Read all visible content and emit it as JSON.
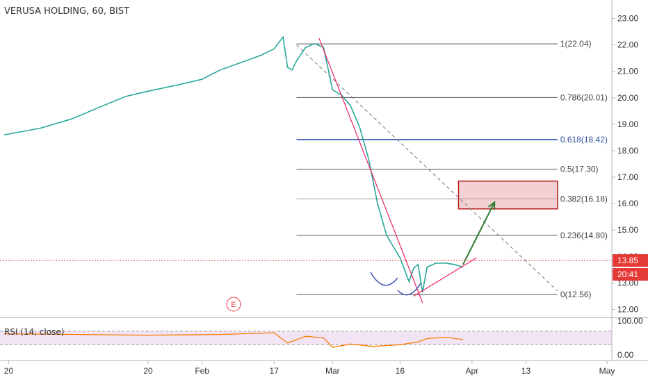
{
  "chart_data": {
    "type": "line",
    "title": "VERUSA HOLDING, 60, BIST",
    "xlabel": "",
    "ylabel": "",
    "ylim": [
      11.75,
      23.3
    ],
    "y_ticks": [
      "23.00",
      "22.00",
      "21.00",
      "20.00",
      "19.00",
      "18.00",
      "17.00",
      "16.00",
      "15.00",
      "14.00",
      "13.00",
      "12.00"
    ],
    "x_ticks": [
      {
        "label": "20",
        "x": "2019-12-20"
      },
      {
        "label": "20",
        "x": "2020-01-20"
      },
      {
        "label": "Feb",
        "x": "2020-02-01"
      },
      {
        "label": "17",
        "x": "2020-02-17"
      },
      {
        "label": "Mar",
        "x": "2020-03-01"
      },
      {
        "label": "16",
        "x": "2020-03-16"
      },
      {
        "label": "Apr",
        "x": "2020-04-01"
      },
      {
        "label": "13",
        "x": "2020-04-13"
      },
      {
        "label": "May",
        "x": "2020-05-01"
      }
    ],
    "xlim": [
      "2019-12-19",
      "2020-05-01"
    ],
    "grid": false,
    "price_series": {
      "x": [
        "2019-12-19",
        "2019-12-27",
        "2020-01-03",
        "2020-01-10",
        "2020-01-15",
        "2020-01-20",
        "2020-01-27",
        "2020-02-01",
        "2020-02-05",
        "2020-02-10",
        "2020-02-14",
        "2020-02-17",
        "2020-02-19",
        "2020-02-20",
        "2020-02-21",
        "2020-02-22",
        "2020-02-24",
        "2020-02-26",
        "2020-02-28",
        "2020-03-01",
        "2020-03-03",
        "2020-03-05",
        "2020-03-07",
        "2020-03-09",
        "2020-03-11",
        "2020-03-13",
        "2020-03-16",
        "2020-03-18",
        "2020-03-19",
        "2020-03-20",
        "2020-03-21",
        "2020-03-22",
        "2020-03-24",
        "2020-03-26",
        "2020-03-28",
        "2020-03-30"
      ],
      "values": [
        18.6,
        18.85,
        19.2,
        19.7,
        20.05,
        20.25,
        20.5,
        20.7,
        21.05,
        21.35,
        21.6,
        21.85,
        22.3,
        21.15,
        21.05,
        21.4,
        21.9,
        22.05,
        21.9,
        20.3,
        20.1,
        19.7,
        18.9,
        17.7,
        16.0,
        14.8,
        13.95,
        13.05,
        13.55,
        13.7,
        12.65,
        13.6,
        13.75,
        13.75,
        13.7,
        13.6
      ]
    },
    "fib_levels": [
      {
        "label": "1(22.04)",
        "value": 22.04
      },
      {
        "label": "0.786(20.01)",
        "value": 20.01
      },
      {
        "label": "0.618(18.42)",
        "value": 18.42
      },
      {
        "label": "0.5(17.30)",
        "value": 17.3
      },
      {
        "label": "0.382(16.18)",
        "value": 16.18
      },
      {
        "label": "0.236(14.80)",
        "value": 14.8
      },
      {
        "label": "0(12.56)",
        "value": 12.56
      }
    ],
    "fib_start": "2020-02-22",
    "fib_end": "2020-04-20",
    "last_price": {
      "label": "13.85",
      "value": 13.85
    },
    "countdown": "20:41",
    "target_zone": {
      "x0": "2020-03-29",
      "x1": "2020-04-20",
      "y0": 15.8,
      "y1": 16.85
    },
    "arrow": {
      "from": [
        "2020-03-30",
        13.7
      ],
      "to": [
        "2020-04-06",
        16.05
      ]
    },
    "trendline_down": {
      "from": [
        "2020-02-27",
        22.25
      ],
      "to": [
        "2020-03-21",
        12.25
      ]
    },
    "trendline_up": {
      "from": [
        "2020-03-19",
        12.5
      ],
      "to": [
        "2020-04-02",
        13.95
      ]
    },
    "dashed_line": {
      "from": [
        "2020-02-22",
        22.0
      ],
      "to": [
        "2020-04-20",
        12.7
      ]
    },
    "event_marker": {
      "label": "E",
      "x": "2020-02-08"
    },
    "rsi": {
      "title": "RSI (14, close)",
      "ylim": [
        0,
        100
      ],
      "y_ticks": [
        "100.00",
        "0.00"
      ],
      "band": [
        30,
        70
      ],
      "x": [
        "2019-12-19",
        "2020-01-05",
        "2020-01-20",
        "2020-02-05",
        "2020-02-17",
        "2020-02-20",
        "2020-02-24",
        "2020-02-28",
        "2020-03-01",
        "2020-03-05",
        "2020-03-10",
        "2020-03-16",
        "2020-03-20",
        "2020-03-22",
        "2020-03-26",
        "2020-03-30"
      ],
      "values": [
        62,
        60,
        58,
        60,
        65,
        35,
        55,
        50,
        22,
        32,
        25,
        30,
        38,
        48,
        52,
        45
      ]
    }
  }
}
